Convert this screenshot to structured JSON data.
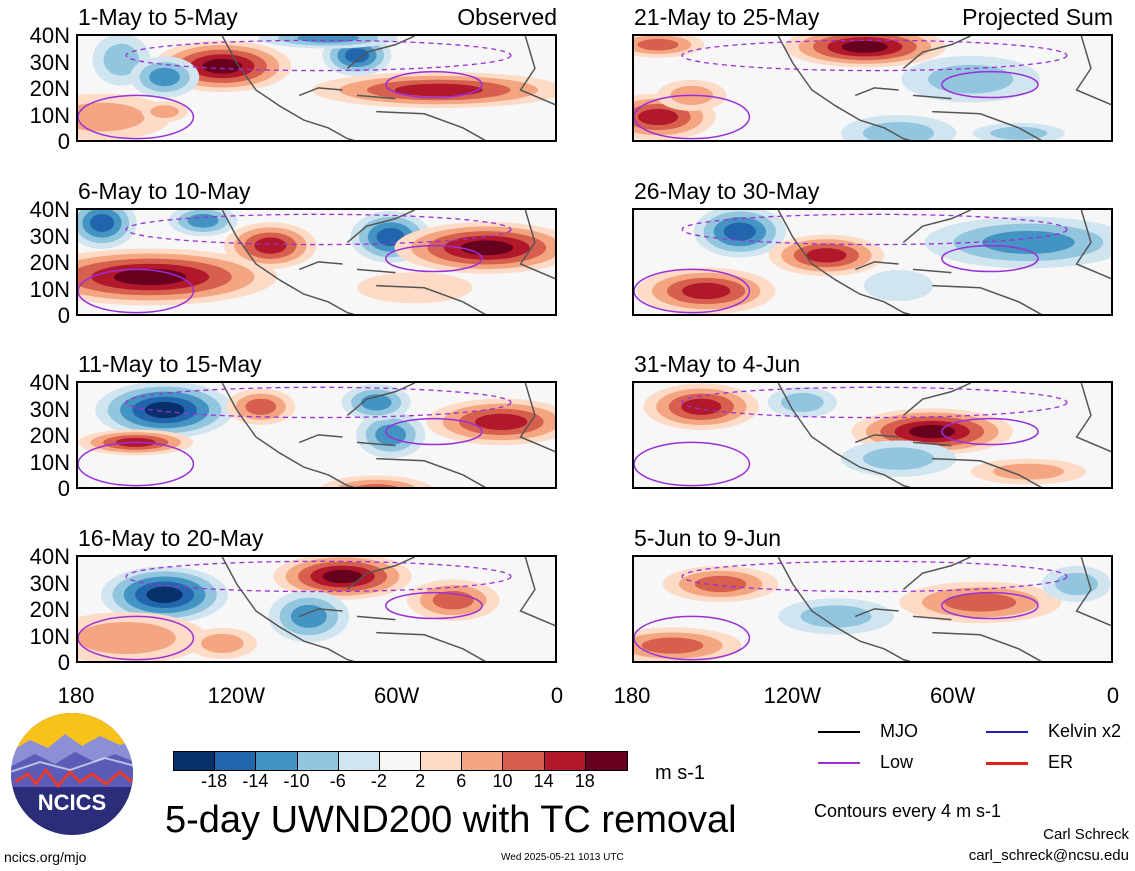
{
  "panels_left": [
    {
      "title": "1-May to 5-May",
      "tag": "Observed"
    },
    {
      "title": "6-May to 10-May",
      "tag": ""
    },
    {
      "title": "11-May to 15-May",
      "tag": ""
    },
    {
      "title": "16-May to 20-May",
      "tag": ""
    }
  ],
  "panels_right": [
    {
      "title": "21-May to 25-May",
      "tag": "Projected Sum"
    },
    {
      "title": "26-May to 30-May",
      "tag": ""
    },
    {
      "title": "31-May to 4-Jun",
      "tag": ""
    },
    {
      "title": "5-Jun to 9-Jun",
      "tag": ""
    }
  ],
  "lat_labels": [
    "40N",
    "30N",
    "20N",
    "10N",
    "0"
  ],
  "lon_labels": [
    "180",
    "120W",
    "60W",
    "0"
  ],
  "colorbar": {
    "colors": [
      "#08306b",
      "#2166ac",
      "#4393c3",
      "#92c5de",
      "#d1e5f0",
      "#f7f7f7",
      "#fddbc7",
      "#f4a582",
      "#d6604d",
      "#b2182b",
      "#67001f"
    ],
    "ticks": [
      "-18",
      "-14",
      "-10",
      "-6",
      "-2",
      "2",
      "6",
      "10",
      "14",
      "18"
    ],
    "unit": "m s-1"
  },
  "main_title": "5-day UWND200 with TC removal",
  "legend": [
    {
      "label": "MJO",
      "color": "#000000"
    },
    {
      "label": "Kelvin x2",
      "color": "#1f1fbf"
    },
    {
      "label": "Low",
      "color": "#9b30d9"
    },
    {
      "label": "ER",
      "color": "#e0201b"
    }
  ],
  "contour_note": "Contours every 4 m s-1",
  "author": "Carl Schreck",
  "email": "carl_schreck@ncsu.edu",
  "website": "ncics.org/mjo",
  "timestamp": "Wed 2025-05-21 1013 UTC",
  "logo_text": "NCICS",
  "colors": {
    "negative": "#2166ac",
    "positive": "#b2182b",
    "contour": "#9b30d9",
    "land": "#555555"
  }
}
